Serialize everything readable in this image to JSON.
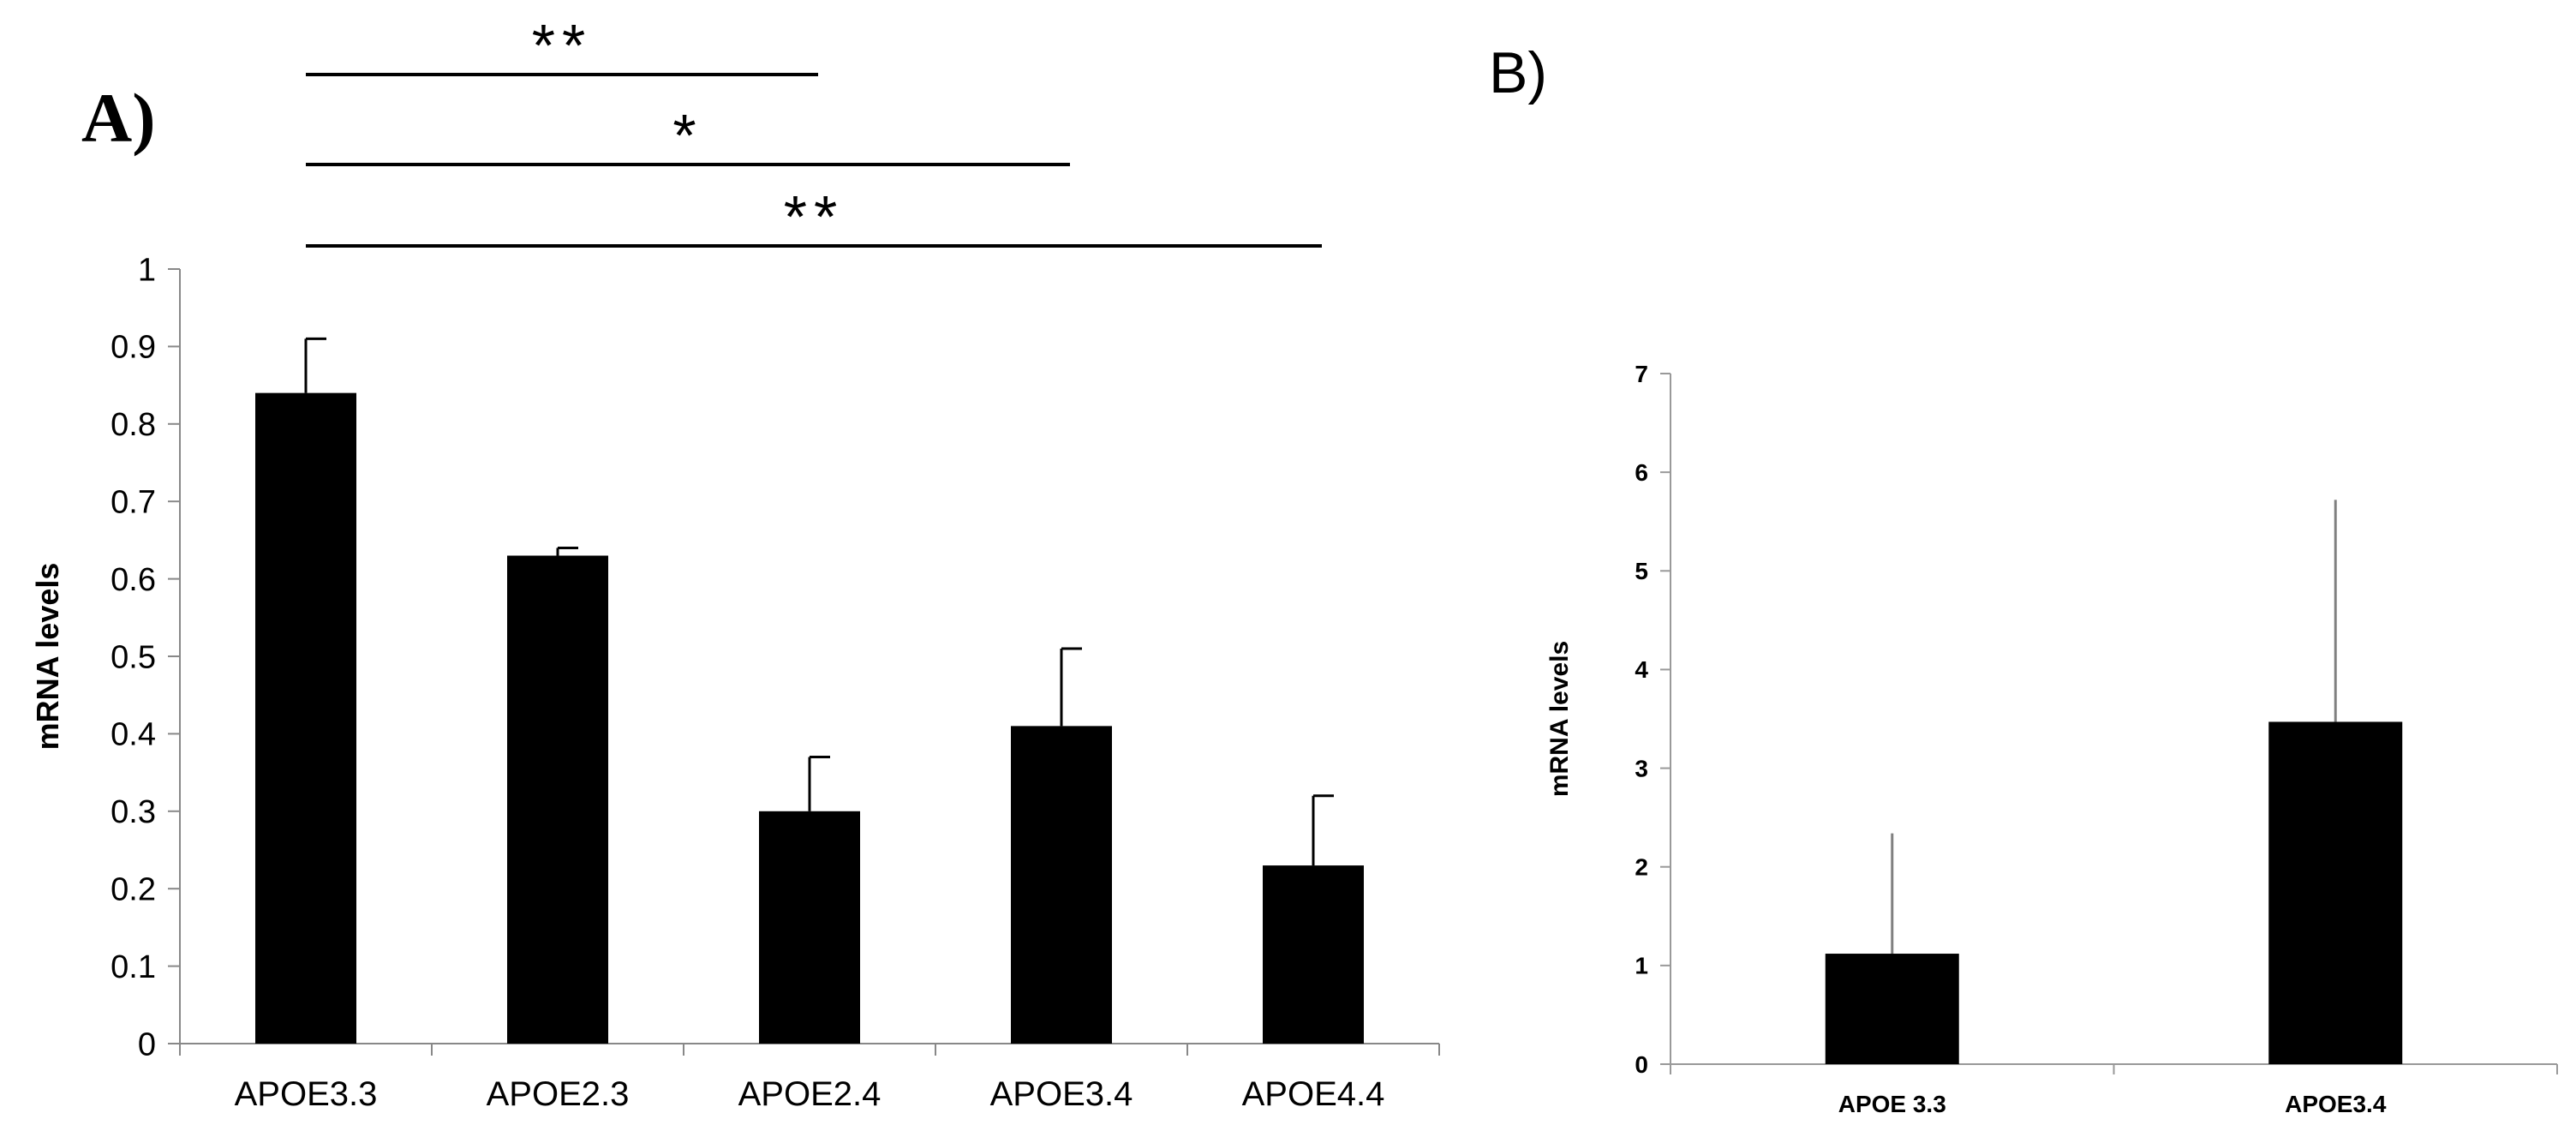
{
  "chart_data": [
    {
      "panel": "A)",
      "type": "bar",
      "ylabel": "mRNA levels",
      "xlabel": "",
      "ylim": [
        0,
        1
      ],
      "ytick_step": 0.1,
      "yticks": [
        "0",
        "0.1",
        "0.2",
        "0.3",
        "0.4",
        "0.5",
        "0.6",
        "0.7",
        "0.8",
        "0.9",
        "1"
      ],
      "categories": [
        "APOE3.3",
        "APOE2.3",
        "APOE2.4",
        "APOE3.4",
        "APOE4.4"
      ],
      "values": [
        0.84,
        0.63,
        0.3,
        0.41,
        0.23
      ],
      "error_upper": [
        0.07,
        0.01,
        0.07,
        0.1,
        0.09
      ],
      "bar_color": "#000000",
      "significance": [
        {
          "from": "APOE3.3",
          "to": "APOE2.4",
          "label": "**"
        },
        {
          "from": "APOE3.3",
          "to": "APOE3.4",
          "label": "*"
        },
        {
          "from": "APOE3.3",
          "to": "APOE4.4",
          "label": "**"
        }
      ]
    },
    {
      "panel": "B)",
      "type": "bar",
      "ylabel": "mRNA levels",
      "xlabel": "",
      "ylim": [
        0,
        7
      ],
      "ytick_step": 1,
      "yticks": [
        "0",
        "1",
        "2",
        "3",
        "4",
        "5",
        "6",
        "7"
      ],
      "categories": [
        "APOE 3.3",
        "APOE3.4"
      ],
      "values": [
        1.12,
        3.47
      ],
      "error_upper": [
        1.22,
        2.25
      ],
      "bar_color": "#000000",
      "error_color": "#808080"
    }
  ]
}
